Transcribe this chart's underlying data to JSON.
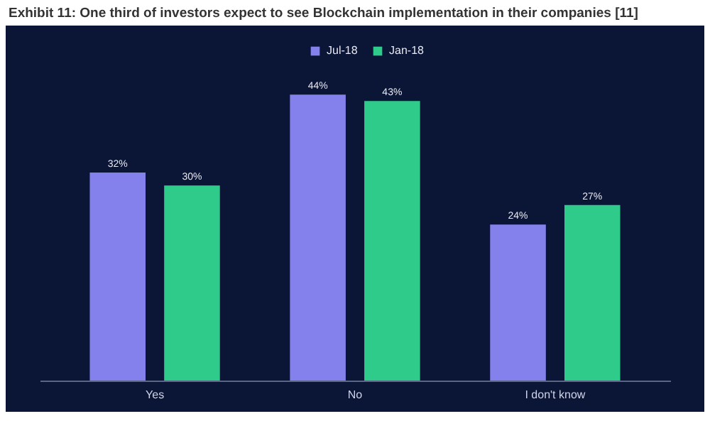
{
  "chart_data": {
    "type": "bar",
    "title": "Exhibit 11: One third of investors expect to see Blockchain implementation in their companies [11]",
    "categories": [
      "Yes",
      "No",
      "I don't know"
    ],
    "series": [
      {
        "name": "Jul-18",
        "color": "#8581ec",
        "values": [
          32,
          44,
          24
        ],
        "value_labels": [
          "32%",
          "44%",
          "24%"
        ]
      },
      {
        "name": "Jan-18",
        "color": "#2fcb8b",
        "values": [
          30,
          43,
          27
        ],
        "value_labels": [
          "30%",
          "43%",
          "27%"
        ]
      }
    ],
    "legend": "top"
  }
}
